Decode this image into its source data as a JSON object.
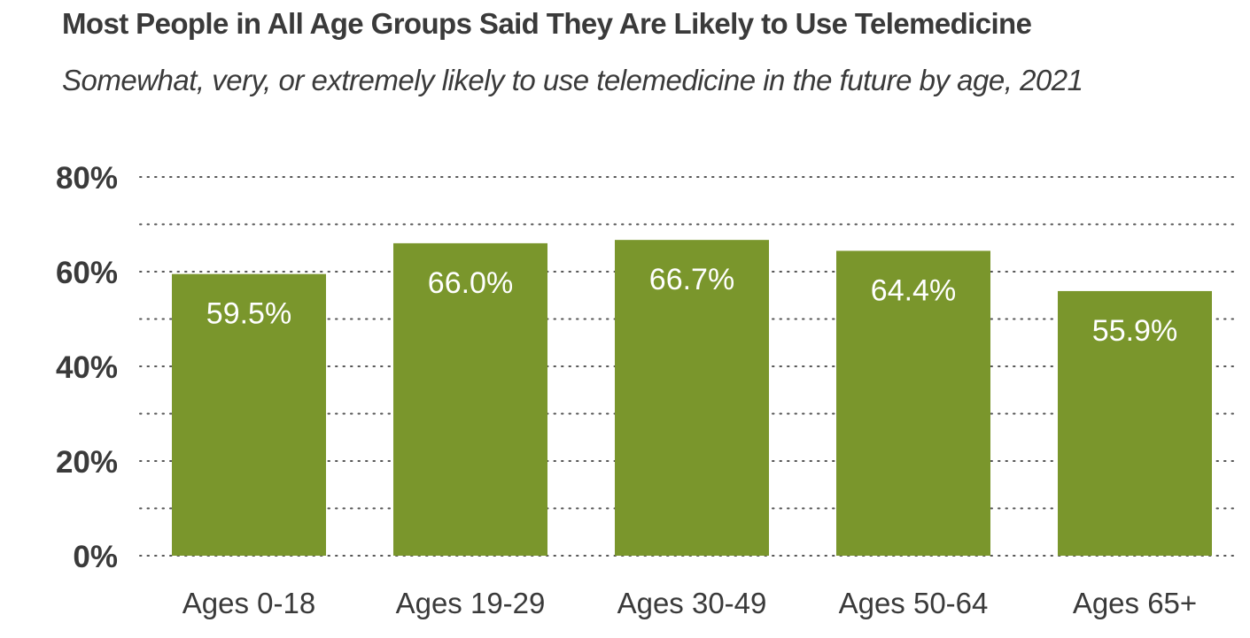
{
  "chart_data": {
    "type": "bar",
    "title": "Most People in All Age Groups Said They Are Likely to Use Telemedicine",
    "subtitle": "Somewhat, very, or extremely likely to use telemedicine in the future by age, 2021",
    "categories": [
      "Ages 0-18",
      "Ages 19-29",
      "Ages 30-49",
      "Ages 50-64",
      "Ages 65+"
    ],
    "values": [
      59.5,
      66.0,
      66.7,
      64.4,
      55.9
    ],
    "value_labels": [
      "59.5%",
      "66.0%",
      "66.7%",
      "64.4%",
      "55.9%"
    ],
    "yticks": [
      0,
      20,
      40,
      60,
      80
    ],
    "ytick_labels": [
      "0%",
      "20%",
      "40%",
      "60%",
      "80%"
    ],
    "ylim": [
      0,
      80
    ],
    "grid": true,
    "bar_color": "#7a962c",
    "label_color": "#ffffff",
    "text_color": "#3a3a3a"
  }
}
